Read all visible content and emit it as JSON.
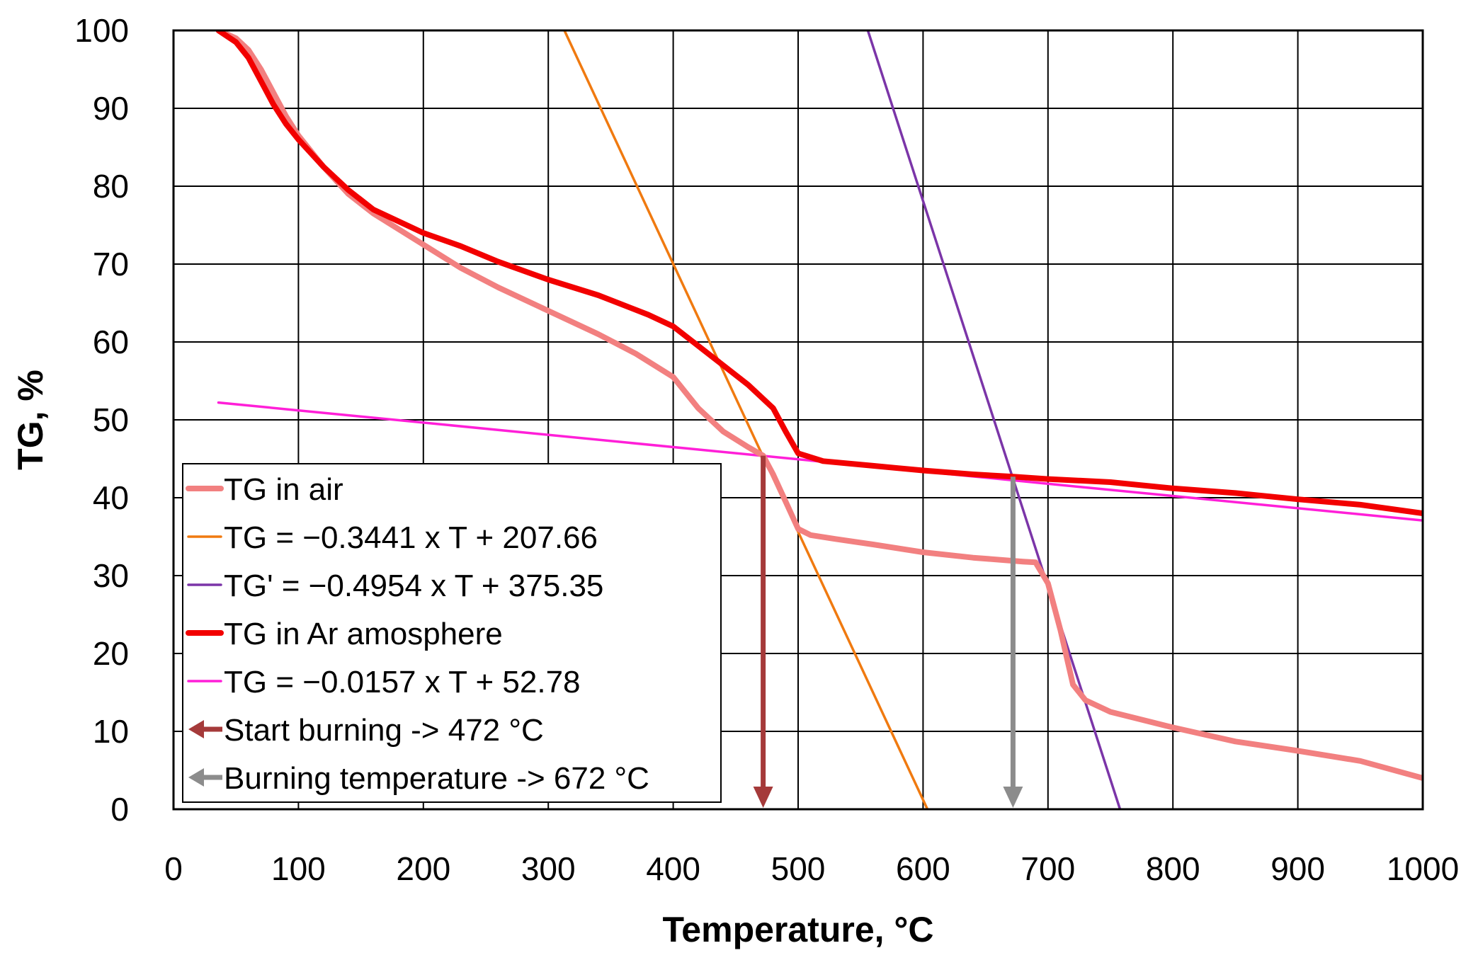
{
  "chart_data": {
    "type": "line",
    "title": "",
    "xlabel": "Temperature, °C",
    "ylabel": "TG, %",
    "xlim": [
      0,
      1000
    ],
    "ylim": [
      0,
      100
    ],
    "xticks": [
      0,
      100,
      200,
      300,
      400,
      500,
      600,
      700,
      800,
      900,
      1000
    ],
    "yticks": [
      0,
      10,
      20,
      30,
      40,
      50,
      60,
      70,
      80,
      90,
      100
    ],
    "grid": true,
    "legend_position": "bottom-left",
    "series": [
      {
        "name": "TG in air",
        "kind": "data",
        "color": "#F28080",
        "points": [
          [
            36,
            100
          ],
          [
            50,
            99
          ],
          [
            60,
            97.5
          ],
          [
            70,
            95
          ],
          [
            80,
            92
          ],
          [
            90,
            89
          ],
          [
            100,
            86.5
          ],
          [
            120,
            82.5
          ],
          [
            140,
            79
          ],
          [
            160,
            76.5
          ],
          [
            180,
            74.5
          ],
          [
            200,
            72.5
          ],
          [
            230,
            69.5
          ],
          [
            260,
            67
          ],
          [
            300,
            64
          ],
          [
            340,
            61
          ],
          [
            370,
            58.5
          ],
          [
            400,
            55.5
          ],
          [
            420,
            51.5
          ],
          [
            440,
            48.5
          ],
          [
            460,
            46.5
          ],
          [
            472,
            45.4
          ],
          [
            480,
            43
          ],
          [
            490,
            39.5
          ],
          [
            500,
            36
          ],
          [
            510,
            35.2
          ],
          [
            530,
            34.7
          ],
          [
            560,
            34
          ],
          [
            600,
            33
          ],
          [
            640,
            32.3
          ],
          [
            680,
            31.8
          ],
          [
            690,
            31.7
          ],
          [
            700,
            29
          ],
          [
            710,
            23
          ],
          [
            720,
            16
          ],
          [
            730,
            14
          ],
          [
            750,
            12.5
          ],
          [
            800,
            10.5
          ],
          [
            850,
            8.7
          ],
          [
            900,
            7.5
          ],
          [
            950,
            6.2
          ],
          [
            1000,
            4
          ]
        ]
      },
      {
        "name": "TG = −0.3441 x T + 207.66",
        "kind": "fit",
        "color": "#F07A10",
        "slope": -0.3441,
        "intercept": 207.66,
        "x_range": [
          312.5,
          603.5
        ]
      },
      {
        "name": "TG' = −0.4954 x T + 375.35",
        "kind": "fit",
        "color": "#7B35A8",
        "slope": -0.4954,
        "intercept": 375.35,
        "x_range": [
          555.8,
          757.7
        ]
      },
      {
        "name": "TG in Ar amosphere",
        "kind": "data",
        "color": "#F20000",
        "points": [
          [
            36,
            100
          ],
          [
            50,
            98.5
          ],
          [
            60,
            96.5
          ],
          [
            70,
            93.5
          ],
          [
            80,
            90.5
          ],
          [
            90,
            88
          ],
          [
            100,
            86
          ],
          [
            120,
            82.5
          ],
          [
            140,
            79.5
          ],
          [
            160,
            77
          ],
          [
            180,
            75.5
          ],
          [
            200,
            74
          ],
          [
            230,
            72.3
          ],
          [
            260,
            70.3
          ],
          [
            300,
            68
          ],
          [
            340,
            66
          ],
          [
            380,
            63.5
          ],
          [
            400,
            62
          ],
          [
            420,
            59.5
          ],
          [
            440,
            57
          ],
          [
            460,
            54.5
          ],
          [
            480,
            51.5
          ],
          [
            490,
            48.5
          ],
          [
            500,
            45.7
          ],
          [
            520,
            44.7
          ],
          [
            560,
            44.1
          ],
          [
            600,
            43.5
          ],
          [
            640,
            43
          ],
          [
            672,
            42.7
          ],
          [
            700,
            42.4
          ],
          [
            750,
            42
          ],
          [
            800,
            41.2
          ],
          [
            850,
            40.6
          ],
          [
            900,
            39.8
          ],
          [
            950,
            39.1
          ],
          [
            1000,
            38
          ]
        ]
      },
      {
        "name": "TG = −0.0157 x T + 52.78",
        "kind": "fit",
        "color": "#FF1FD8",
        "slope": -0.0157,
        "intercept": 52.78,
        "x_range": [
          36,
          1000
        ]
      }
    ],
    "markers": [
      {
        "name": "Start burning -> 472 °C",
        "x": 472,
        "y_from": 45.4,
        "y_to": 0,
        "color": "#A53A3A"
      },
      {
        "name": "Burning temperature -> 672 °C",
        "x": 672,
        "y_from": 42.7,
        "y_to": 0,
        "color": "#8C8C8C"
      }
    ]
  }
}
